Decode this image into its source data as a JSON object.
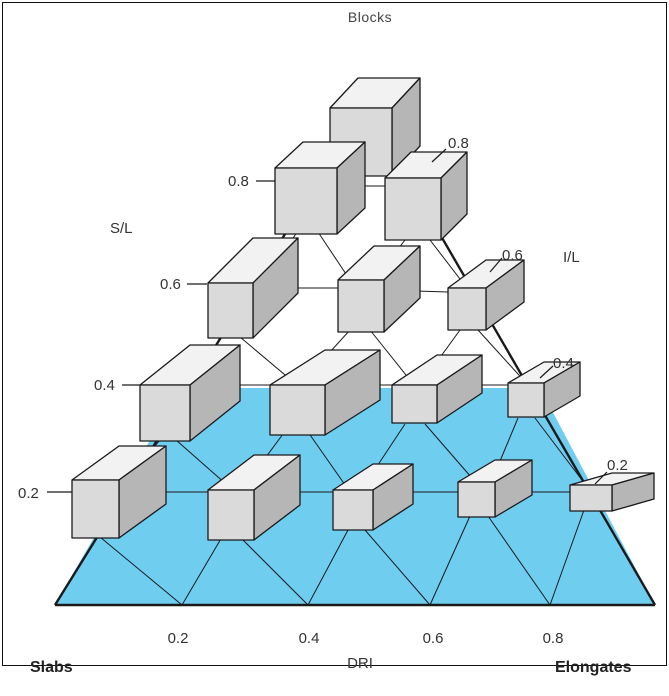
{
  "title": "Blocks",
  "corners": {
    "left": "Slabs",
    "right": "Elongates"
  },
  "axes": {
    "bottom": "DRI",
    "left_side": "S/L",
    "right_side": "I/L"
  },
  "bottom_ticks": [
    "0.2",
    "0.4",
    "0.6",
    "0.8"
  ],
  "left_ticks": [
    "0.8",
    "0.6",
    "0.4",
    "0.2"
  ],
  "right_ticks": [
    "0.8",
    "0.6",
    "0.4",
    "0.2"
  ],
  "colors": {
    "plane": "#6fcdf0",
    "line": "#1a1a1a",
    "box_top": "#f2f2f2",
    "box_front": "#dadada",
    "box_side": "#b6b6b6"
  }
}
